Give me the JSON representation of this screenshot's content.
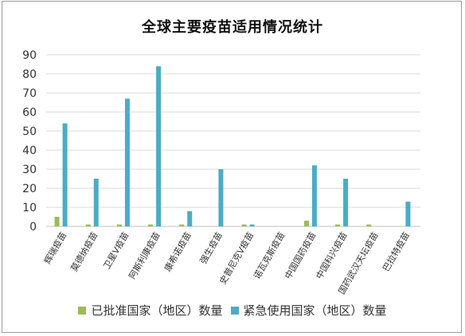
{
  "chart_data": {
    "type": "bar",
    "title": "全球主要疫苗适用情况统计",
    "categories": [
      "辉瑞疫苗",
      "莫德纳疫苗",
      "卫星V疫苗",
      "阿斯利康疫苗",
      "康希诺疫苗",
      "强生疫苗",
      "史普尼克V疫苗",
      "诺瓦克斯疫苗",
      "中国国药疫苗",
      "中国科兴疫苗",
      "国药武汉天坛疫苗",
      "巴拉特疫苗"
    ],
    "series": [
      {
        "name": "已批准国家（地区）数量",
        "color": "#9bbb59",
        "values": [
          5,
          1,
          1,
          1,
          1,
          0,
          1,
          0,
          3,
          1,
          1,
          0
        ]
      },
      {
        "name": "紧急使用国家（地区）数量",
        "color": "#4bacc6",
        "values": [
          54,
          25,
          67,
          84,
          8,
          30,
          1,
          0,
          32,
          25,
          0,
          13
        ]
      }
    ],
    "ylim": [
      0,
      90
    ],
    "yticks": [
      0,
      10,
      20,
      30,
      40,
      50,
      60,
      70,
      80,
      90
    ],
    "grid": true,
    "legend_position": "bottom"
  }
}
